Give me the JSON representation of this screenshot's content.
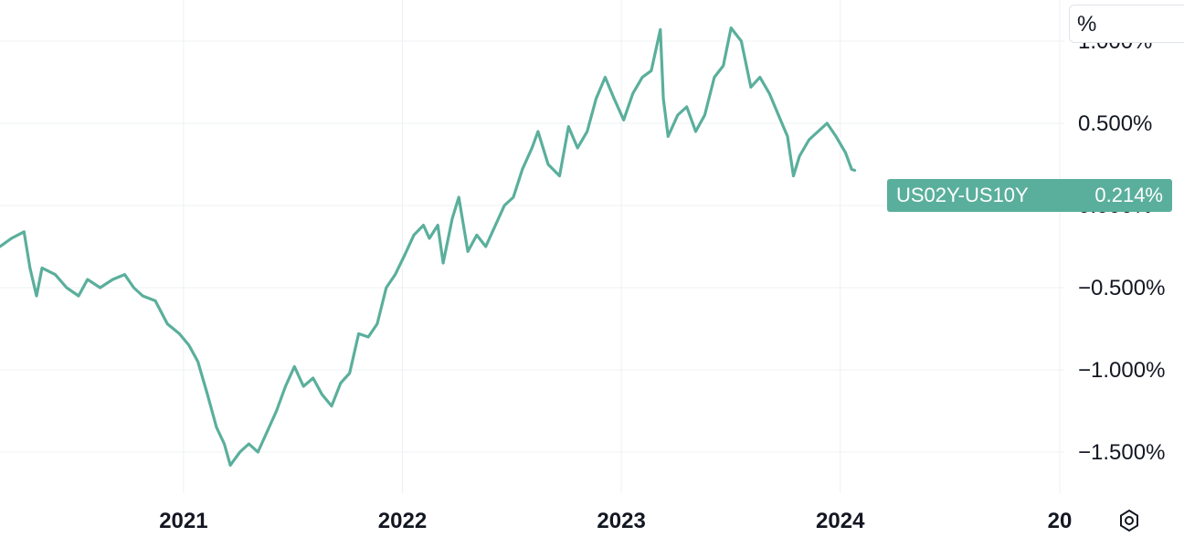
{
  "chart_data": {
    "type": "line",
    "series": [
      {
        "name": "US02Y-US10Y",
        "color": "#5aaf9c",
        "points": [
          [
            "2020-03-01",
            -0.25
          ],
          [
            "2020-03-20",
            -0.2
          ],
          [
            "2020-04-10",
            -0.16
          ],
          [
            "2020-04-20",
            -0.38
          ],
          [
            "2020-05-01",
            -0.55
          ],
          [
            "2020-05-10",
            -0.38
          ],
          [
            "2020-06-01",
            -0.42
          ],
          [
            "2020-06-20",
            -0.5
          ],
          [
            "2020-07-10",
            -0.55
          ],
          [
            "2020-07-25",
            -0.45
          ],
          [
            "2020-08-15",
            -0.5
          ],
          [
            "2020-09-05",
            -0.45
          ],
          [
            "2020-09-25",
            -0.42
          ],
          [
            "2020-10-10",
            -0.5
          ],
          [
            "2020-10-25",
            -0.55
          ],
          [
            "2020-11-15",
            -0.58
          ],
          [
            "2020-12-05",
            -0.72
          ],
          [
            "2020-12-25",
            -0.78
          ],
          [
            "2021-01-10",
            -0.85
          ],
          [
            "2021-01-25",
            -0.95
          ],
          [
            "2021-02-10",
            -1.15
          ],
          [
            "2021-02-25",
            -1.35
          ],
          [
            "2021-03-10",
            -1.45
          ],
          [
            "2021-03-20",
            -1.58
          ],
          [
            "2021-04-05",
            -1.5
          ],
          [
            "2021-04-20",
            -1.45
          ],
          [
            "2021-05-05",
            -1.5
          ],
          [
            "2021-05-20",
            -1.38
          ],
          [
            "2021-06-05",
            -1.25
          ],
          [
            "2021-06-20",
            -1.1
          ],
          [
            "2021-07-05",
            -0.98
          ],
          [
            "2021-07-20",
            -1.1
          ],
          [
            "2021-08-05",
            -1.05
          ],
          [
            "2021-08-20",
            -1.15
          ],
          [
            "2021-09-05",
            -1.22
          ],
          [
            "2021-09-20",
            -1.08
          ],
          [
            "2021-10-05",
            -1.02
          ],
          [
            "2021-10-20",
            -0.78
          ],
          [
            "2021-11-05",
            -0.8
          ],
          [
            "2021-11-20",
            -0.72
          ],
          [
            "2021-12-05",
            -0.5
          ],
          [
            "2021-12-20",
            -0.42
          ],
          [
            "2022-01-05",
            -0.3
          ],
          [
            "2022-01-20",
            -0.18
          ],
          [
            "2022-02-05",
            -0.12
          ],
          [
            "2022-02-15",
            -0.2
          ],
          [
            "2022-03-01",
            -0.12
          ],
          [
            "2022-03-10",
            -0.35
          ],
          [
            "2022-03-25",
            -0.08
          ],
          [
            "2022-04-05",
            0.05
          ],
          [
            "2022-04-20",
            -0.28
          ],
          [
            "2022-05-05",
            -0.18
          ],
          [
            "2022-05-20",
            -0.25
          ],
          [
            "2022-06-05",
            -0.12
          ],
          [
            "2022-06-20",
            0.0
          ],
          [
            "2022-07-05",
            0.05
          ],
          [
            "2022-07-20",
            0.22
          ],
          [
            "2022-08-05",
            0.35
          ],
          [
            "2022-08-15",
            0.45
          ],
          [
            "2022-09-01",
            0.25
          ],
          [
            "2022-09-20",
            0.18
          ],
          [
            "2022-10-05",
            0.48
          ],
          [
            "2022-10-20",
            0.35
          ],
          [
            "2022-11-05",
            0.45
          ],
          [
            "2022-11-20",
            0.65
          ],
          [
            "2022-12-05",
            0.78
          ],
          [
            "2022-12-20",
            0.65
          ],
          [
            "2023-01-05",
            0.52
          ],
          [
            "2023-01-20",
            0.68
          ],
          [
            "2023-02-05",
            0.78
          ],
          [
            "2023-02-20",
            0.82
          ],
          [
            "2023-03-07",
            1.07
          ],
          [
            "2023-03-12",
            0.65
          ],
          [
            "2023-03-20",
            0.42
          ],
          [
            "2023-04-05",
            0.55
          ],
          [
            "2023-04-20",
            0.6
          ],
          [
            "2023-05-05",
            0.45
          ],
          [
            "2023-05-20",
            0.55
          ],
          [
            "2023-06-05",
            0.78
          ],
          [
            "2023-06-20",
            0.85
          ],
          [
            "2023-07-03",
            1.08
          ],
          [
            "2023-07-20",
            1.0
          ],
          [
            "2023-08-05",
            0.72
          ],
          [
            "2023-08-20",
            0.78
          ],
          [
            "2023-09-05",
            0.68
          ],
          [
            "2023-09-20",
            0.55
          ],
          [
            "2023-10-05",
            0.42
          ],
          [
            "2023-10-15",
            0.18
          ],
          [
            "2023-10-25",
            0.3
          ],
          [
            "2023-11-10",
            0.4
          ],
          [
            "2023-11-25",
            0.45
          ],
          [
            "2023-12-10",
            0.5
          ],
          [
            "2023-12-25",
            0.42
          ],
          [
            "2024-01-10",
            0.32
          ],
          [
            "2024-01-20",
            0.22
          ],
          [
            "2024-01-25",
            0.214
          ]
        ]
      }
    ],
    "xlim": [
      "2020-03-01",
      "2025-01-01"
    ],
    "ylim": [
      -1.75,
      1.25
    ],
    "x_ticks": [
      {
        "label": "2021",
        "value": "2021-01-01"
      },
      {
        "label": "2022",
        "value": "2022-01-01"
      },
      {
        "label": "2023",
        "value": "2023-01-01"
      },
      {
        "label": "2024",
        "value": "2024-01-01"
      },
      {
        "label": "20",
        "value": "2025-01-01"
      }
    ],
    "y_ticks": [
      {
        "label": "1.000%",
        "value": 1.0
      },
      {
        "label": "0.500%",
        "value": 0.5
      },
      {
        "label": "0.000%",
        "value": 0.0
      },
      {
        "label": "−0.500%",
        "value": -0.5
      },
      {
        "label": "−1.000%",
        "value": -1.0
      },
      {
        "label": "−1.500%",
        "value": -1.5
      }
    ],
    "grid": true,
    "unit_label": "%",
    "last_value_label": "0.214%",
    "series_label": "US02Y-US10Y"
  },
  "settings_icon": "settings-gear-icon"
}
